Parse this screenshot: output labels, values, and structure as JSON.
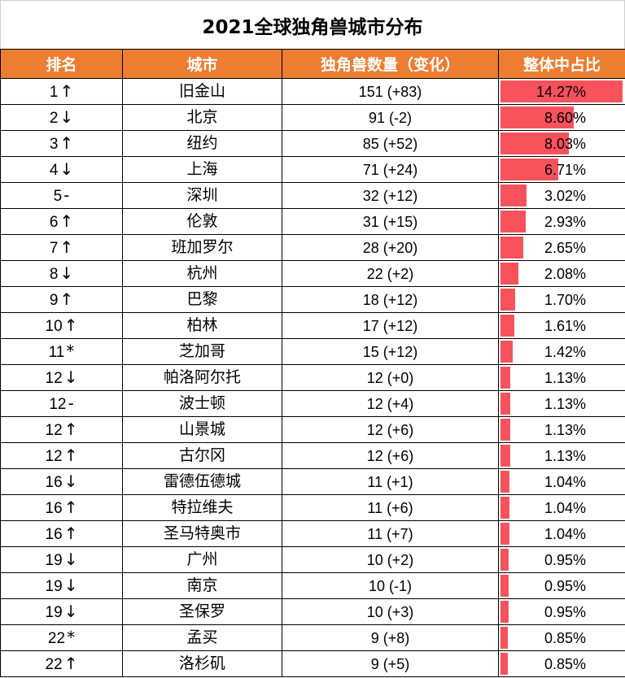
{
  "title": "2021全球独角兽城市分布",
  "headers": {
    "rank": "排名",
    "city": "城市",
    "count": "独角兽数量（变化）",
    "share": "整体中占比"
  },
  "colors": {
    "header_bg": "#ed7d31",
    "bar": "#f8525c"
  },
  "max_share": 14.27,
  "rows": [
    {
      "rank": "1",
      "trend": "↑",
      "city": "旧金山",
      "count": "151 (+83)",
      "share_label": "14.27%",
      "share_value": 14.27
    },
    {
      "rank": "2",
      "trend": "↓",
      "city": "北京",
      "count": "91 (-2)",
      "share_label": "8.60%",
      "share_value": 8.6
    },
    {
      "rank": "3",
      "trend": "↑",
      "city": "纽约",
      "count": "85 (+52)",
      "share_label": "8.03%",
      "share_value": 8.03
    },
    {
      "rank": "4",
      "trend": "↓",
      "city": "上海",
      "count": "71 (+24)",
      "share_label": "6.71%",
      "share_value": 6.71
    },
    {
      "rank": "5",
      "trend": "-",
      "city": "深圳",
      "count": "32 (+12)",
      "share_label": "3.02%",
      "share_value": 3.02
    },
    {
      "rank": "6",
      "trend": "↑",
      "city": "伦敦",
      "count": "31 (+15)",
      "share_label": "2.93%",
      "share_value": 2.93
    },
    {
      "rank": "7",
      "trend": "↑",
      "city": "班加罗尔",
      "count": "28 (+20)",
      "share_label": "2.65%",
      "share_value": 2.65
    },
    {
      "rank": "8",
      "trend": "↓",
      "city": "杭州",
      "count": "22 (+2)",
      "share_label": "2.08%",
      "share_value": 2.08
    },
    {
      "rank": "9",
      "trend": "↑",
      "city": "巴黎",
      "count": "18 (+12)",
      "share_label": "1.70%",
      "share_value": 1.7
    },
    {
      "rank": "10",
      "trend": "↑",
      "city": "柏林",
      "count": "17 (+12)",
      "share_label": "1.61%",
      "share_value": 1.61
    },
    {
      "rank": "11",
      "trend": "*",
      "city": "芝加哥",
      "count": "15 (+12)",
      "share_label": "1.42%",
      "share_value": 1.42
    },
    {
      "rank": "12",
      "trend": "↓",
      "city": "帕洛阿尔托",
      "count": "12 (+0)",
      "share_label": "1.13%",
      "share_value": 1.13
    },
    {
      "rank": "12",
      "trend": "-",
      "city": "波士顿",
      "count": "12 (+4)",
      "share_label": "1.13%",
      "share_value": 1.13
    },
    {
      "rank": "12",
      "trend": "↑",
      "city": "山景城",
      "count": "12 (+6)",
      "share_label": "1.13%",
      "share_value": 1.13
    },
    {
      "rank": "12",
      "trend": "↑",
      "city": "古尔冈",
      "count": "12 (+6)",
      "share_label": "1.13%",
      "share_value": 1.13
    },
    {
      "rank": "16",
      "trend": "↓",
      "city": "雷德伍德城",
      "count": "11 (+1)",
      "share_label": "1.04%",
      "share_value": 1.04
    },
    {
      "rank": "16",
      "trend": "↑",
      "city": "特拉维夫",
      "count": "11 (+6)",
      "share_label": "1.04%",
      "share_value": 1.04
    },
    {
      "rank": "16",
      "trend": "↑",
      "city": "圣马特奥市",
      "count": "11 (+7)",
      "share_label": "1.04%",
      "share_value": 1.04
    },
    {
      "rank": "19",
      "trend": "↓",
      "city": "广州",
      "count": "10 (+2)",
      "share_label": "0.95%",
      "share_value": 0.95
    },
    {
      "rank": "19",
      "trend": "↓",
      "city": "南京",
      "count": "10 (-1)",
      "share_label": "0.95%",
      "share_value": 0.95
    },
    {
      "rank": "19",
      "trend": "↓",
      "city": "圣保罗",
      "count": "10 (+3)",
      "share_label": "0.95%",
      "share_value": 0.95
    },
    {
      "rank": "22",
      "trend": "*",
      "city": "孟买",
      "count": "9 (+8)",
      "share_label": "0.85%",
      "share_value": 0.85
    },
    {
      "rank": "22",
      "trend": "↑",
      "city": "洛杉矶",
      "count": "9 (+5)",
      "share_label": "0.85%",
      "share_value": 0.85
    }
  ]
}
